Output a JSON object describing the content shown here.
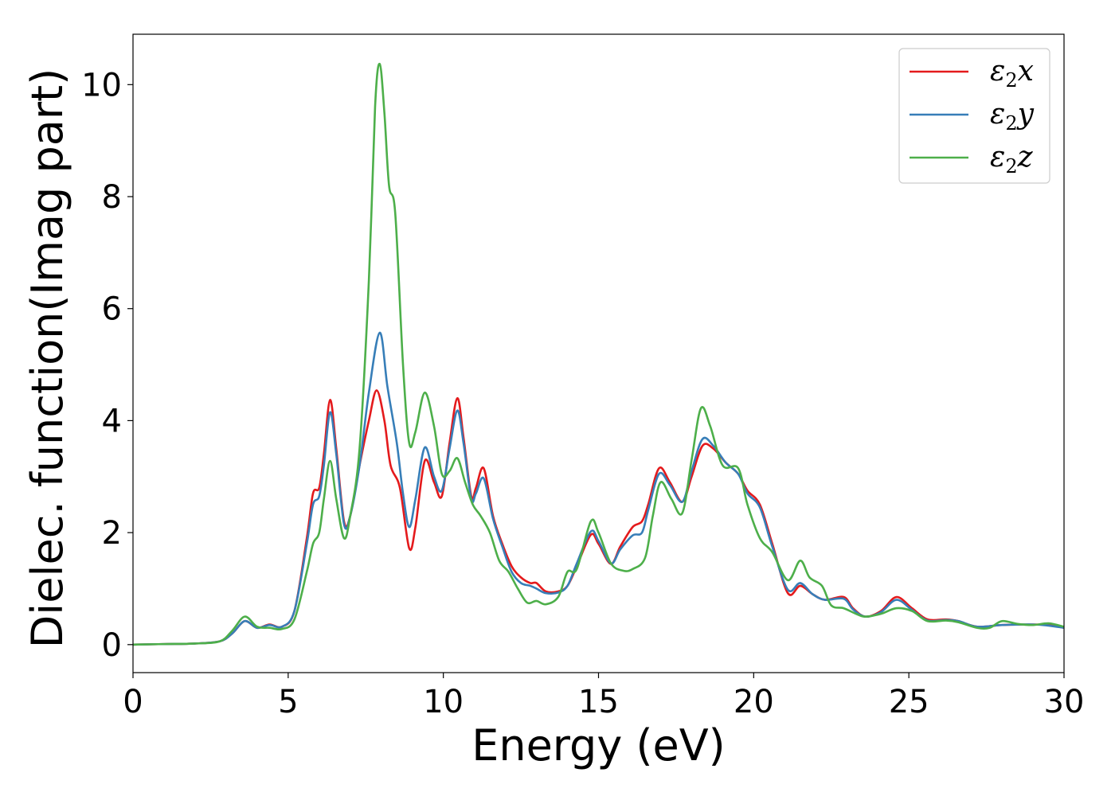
{
  "chart_data": {
    "type": "line",
    "xlabel": "Energy (eV)",
    "ylabel": "Dielec. function(Imag part)",
    "xlim": [
      0,
      30
    ],
    "ylim": [
      -0.5,
      10.9
    ],
    "xticks": [
      0,
      5,
      10,
      15,
      20,
      25,
      30
    ],
    "yticks": [
      0,
      2,
      4,
      6,
      8,
      10
    ],
    "grid": false,
    "legend": {
      "placement": "top-right"
    },
    "series": [
      {
        "name": "ε2x",
        "legend": {
          "base": "ε",
          "sub": "2",
          "suffix": "x"
        },
        "color": "#e41a1c",
        "points": [
          [
            0,
            0
          ],
          [
            1,
            0.01
          ],
          [
            2,
            0.02
          ],
          [
            2.8,
            0.06
          ],
          [
            3.2,
            0.2
          ],
          [
            3.6,
            0.42
          ],
          [
            4.0,
            0.3
          ],
          [
            4.4,
            0.36
          ],
          [
            4.8,
            0.32
          ],
          [
            5.2,
            0.6
          ],
          [
            5.6,
            1.9
          ],
          [
            5.8,
            2.7
          ],
          [
            6.0,
            2.8
          ],
          [
            6.15,
            3.4
          ],
          [
            6.35,
            4.37
          ],
          [
            6.55,
            3.5
          ],
          [
            6.8,
            2.2
          ],
          [
            7.0,
            2.3
          ],
          [
            7.3,
            3.2
          ],
          [
            7.6,
            4.0
          ],
          [
            7.85,
            4.54
          ],
          [
            8.1,
            4.0
          ],
          [
            8.3,
            3.2
          ],
          [
            8.6,
            2.8
          ],
          [
            8.9,
            1.72
          ],
          [
            9.1,
            2.1
          ],
          [
            9.4,
            3.28
          ],
          [
            9.7,
            2.9
          ],
          [
            9.95,
            2.65
          ],
          [
            10.2,
            3.6
          ],
          [
            10.45,
            4.4
          ],
          [
            10.65,
            3.7
          ],
          [
            10.9,
            2.65
          ],
          [
            11.05,
            2.8
          ],
          [
            11.3,
            3.15
          ],
          [
            11.6,
            2.3
          ],
          [
            11.9,
            1.8
          ],
          [
            12.2,
            1.4
          ],
          [
            12.5,
            1.2
          ],
          [
            12.8,
            1.1
          ],
          [
            13.0,
            1.1
          ],
          [
            13.3,
            0.95
          ],
          [
            13.7,
            0.95
          ],
          [
            14.0,
            1.05
          ],
          [
            14.3,
            1.4
          ],
          [
            14.75,
            1.96
          ],
          [
            15.0,
            1.8
          ],
          [
            15.4,
            1.44
          ],
          [
            15.7,
            1.75
          ],
          [
            16.1,
            2.1
          ],
          [
            16.4,
            2.2
          ],
          [
            16.6,
            2.5
          ],
          [
            16.95,
            3.15
          ],
          [
            17.3,
            2.9
          ],
          [
            17.7,
            2.55
          ],
          [
            18.0,
            3.0
          ],
          [
            18.35,
            3.55
          ],
          [
            18.7,
            3.5
          ],
          [
            19.1,
            3.25
          ],
          [
            19.5,
            3.05
          ],
          [
            19.8,
            2.75
          ],
          [
            20.2,
            2.5
          ],
          [
            20.6,
            1.8
          ],
          [
            21.1,
            0.92
          ],
          [
            21.5,
            1.05
          ],
          [
            21.9,
            0.9
          ],
          [
            22.3,
            0.8
          ],
          [
            22.9,
            0.85
          ],
          [
            23.2,
            0.65
          ],
          [
            23.6,
            0.5
          ],
          [
            24.1,
            0.6
          ],
          [
            24.6,
            0.85
          ],
          [
            25.1,
            0.65
          ],
          [
            25.6,
            0.45
          ],
          [
            26.2,
            0.45
          ],
          [
            26.6,
            0.42
          ],
          [
            27.2,
            0.32
          ],
          [
            28.0,
            0.35
          ],
          [
            29.0,
            0.36
          ],
          [
            29.5,
            0.35
          ],
          [
            30,
            0.3
          ]
        ]
      },
      {
        "name": "ε2y",
        "legend": {
          "base": "ε",
          "sub": "2",
          "suffix": "y"
        },
        "color": "#377eb8",
        "points": [
          [
            0,
            0
          ],
          [
            1,
            0.01
          ],
          [
            2,
            0.02
          ],
          [
            2.8,
            0.06
          ],
          [
            3.2,
            0.2
          ],
          [
            3.6,
            0.42
          ],
          [
            4.0,
            0.3
          ],
          [
            4.4,
            0.35
          ],
          [
            4.8,
            0.32
          ],
          [
            5.2,
            0.6
          ],
          [
            5.6,
            1.8
          ],
          [
            5.8,
            2.5
          ],
          [
            6.0,
            2.65
          ],
          [
            6.15,
            3.2
          ],
          [
            6.35,
            4.15
          ],
          [
            6.55,
            3.4
          ],
          [
            6.8,
            2.15
          ],
          [
            7.0,
            2.3
          ],
          [
            7.3,
            3.2
          ],
          [
            7.6,
            4.5
          ],
          [
            7.95,
            5.57
          ],
          [
            8.2,
            4.6
          ],
          [
            8.5,
            3.6
          ],
          [
            8.7,
            2.7
          ],
          [
            8.9,
            2.1
          ],
          [
            9.1,
            2.6
          ],
          [
            9.4,
            3.52
          ],
          [
            9.7,
            3.0
          ],
          [
            9.95,
            2.75
          ],
          [
            10.2,
            3.5
          ],
          [
            10.45,
            4.18
          ],
          [
            10.65,
            3.6
          ],
          [
            10.9,
            2.6
          ],
          [
            11.05,
            2.7
          ],
          [
            11.3,
            2.97
          ],
          [
            11.6,
            2.25
          ],
          [
            11.9,
            1.75
          ],
          [
            12.2,
            1.3
          ],
          [
            12.5,
            1.1
          ],
          [
            12.8,
            1.05
          ],
          [
            13.0,
            1.0
          ],
          [
            13.3,
            0.92
          ],
          [
            13.7,
            0.93
          ],
          [
            14.0,
            1.05
          ],
          [
            14.3,
            1.45
          ],
          [
            14.75,
            2.02
          ],
          [
            15.0,
            1.85
          ],
          [
            15.4,
            1.45
          ],
          [
            15.7,
            1.7
          ],
          [
            16.1,
            1.95
          ],
          [
            16.4,
            2.0
          ],
          [
            16.6,
            2.4
          ],
          [
            16.95,
            3.05
          ],
          [
            17.3,
            2.85
          ],
          [
            17.7,
            2.55
          ],
          [
            18.0,
            3.1
          ],
          [
            18.35,
            3.67
          ],
          [
            18.7,
            3.55
          ],
          [
            19.1,
            3.25
          ],
          [
            19.5,
            3.05
          ],
          [
            19.8,
            2.7
          ],
          [
            20.2,
            2.45
          ],
          [
            20.6,
            1.75
          ],
          [
            21.1,
            0.98
          ],
          [
            21.5,
            1.1
          ],
          [
            21.9,
            0.9
          ],
          [
            22.3,
            0.8
          ],
          [
            22.9,
            0.82
          ],
          [
            23.2,
            0.63
          ],
          [
            23.6,
            0.5
          ],
          [
            24.1,
            0.58
          ],
          [
            24.6,
            0.8
          ],
          [
            25.1,
            0.62
          ],
          [
            25.6,
            0.43
          ],
          [
            26.2,
            0.44
          ],
          [
            26.6,
            0.42
          ],
          [
            27.2,
            0.32
          ],
          [
            28.0,
            0.35
          ],
          [
            29.0,
            0.36
          ],
          [
            29.5,
            0.34
          ],
          [
            30,
            0.3
          ]
        ]
      },
      {
        "name": "ε2z",
        "legend": {
          "base": "ε",
          "sub": "2",
          "suffix": "z"
        },
        "color": "#4daf4a",
        "points": [
          [
            0,
            0
          ],
          [
            1,
            0.01
          ],
          [
            2,
            0.02
          ],
          [
            2.8,
            0.06
          ],
          [
            3.2,
            0.25
          ],
          [
            3.6,
            0.5
          ],
          [
            4.0,
            0.32
          ],
          [
            4.4,
            0.3
          ],
          [
            4.8,
            0.28
          ],
          [
            5.2,
            0.45
          ],
          [
            5.6,
            1.3
          ],
          [
            5.8,
            1.8
          ],
          [
            6.0,
            2.0
          ],
          [
            6.15,
            2.6
          ],
          [
            6.35,
            3.28
          ],
          [
            6.55,
            2.6
          ],
          [
            6.8,
            1.9
          ],
          [
            7.0,
            2.3
          ],
          [
            7.3,
            3.5
          ],
          [
            7.6,
            6.5
          ],
          [
            7.8,
            9.6
          ],
          [
            7.95,
            10.37
          ],
          [
            8.1,
            9.5
          ],
          [
            8.25,
            8.2
          ],
          [
            8.45,
            7.7
          ],
          [
            8.7,
            5.0
          ],
          [
            8.9,
            3.6
          ],
          [
            9.1,
            3.8
          ],
          [
            9.4,
            4.5
          ],
          [
            9.7,
            3.9
          ],
          [
            9.95,
            3.05
          ],
          [
            10.2,
            3.1
          ],
          [
            10.45,
            3.33
          ],
          [
            10.7,
            2.9
          ],
          [
            10.95,
            2.5
          ],
          [
            11.2,
            2.3
          ],
          [
            11.5,
            2.0
          ],
          [
            11.8,
            1.5
          ],
          [
            12.1,
            1.3
          ],
          [
            12.4,
            1.0
          ],
          [
            12.7,
            0.75
          ],
          [
            13.0,
            0.78
          ],
          [
            13.3,
            0.72
          ],
          [
            13.7,
            0.85
          ],
          [
            14.0,
            1.3
          ],
          [
            14.3,
            1.35
          ],
          [
            14.75,
            2.2
          ],
          [
            15.0,
            2.0
          ],
          [
            15.4,
            1.45
          ],
          [
            15.8,
            1.32
          ],
          [
            16.1,
            1.35
          ],
          [
            16.5,
            1.55
          ],
          [
            16.75,
            2.3
          ],
          [
            17.0,
            2.9
          ],
          [
            17.35,
            2.6
          ],
          [
            17.7,
            2.35
          ],
          [
            18.0,
            3.3
          ],
          [
            18.3,
            4.22
          ],
          [
            18.6,
            3.9
          ],
          [
            19.0,
            3.2
          ],
          [
            19.5,
            3.15
          ],
          [
            19.8,
            2.5
          ],
          [
            20.2,
            1.9
          ],
          [
            20.6,
            1.65
          ],
          [
            21.1,
            1.15
          ],
          [
            21.5,
            1.5
          ],
          [
            21.8,
            1.2
          ],
          [
            22.2,
            1.05
          ],
          [
            22.5,
            0.7
          ],
          [
            22.9,
            0.65
          ],
          [
            23.3,
            0.55
          ],
          [
            23.6,
            0.5
          ],
          [
            24.1,
            0.55
          ],
          [
            24.6,
            0.65
          ],
          [
            25.1,
            0.6
          ],
          [
            25.6,
            0.42
          ],
          [
            26.2,
            0.43
          ],
          [
            26.6,
            0.4
          ],
          [
            27.2,
            0.3
          ],
          [
            27.6,
            0.3
          ],
          [
            28.0,
            0.42
          ],
          [
            28.5,
            0.37
          ],
          [
            29.0,
            0.35
          ],
          [
            29.5,
            0.38
          ],
          [
            30,
            0.32
          ]
        ]
      }
    ]
  }
}
